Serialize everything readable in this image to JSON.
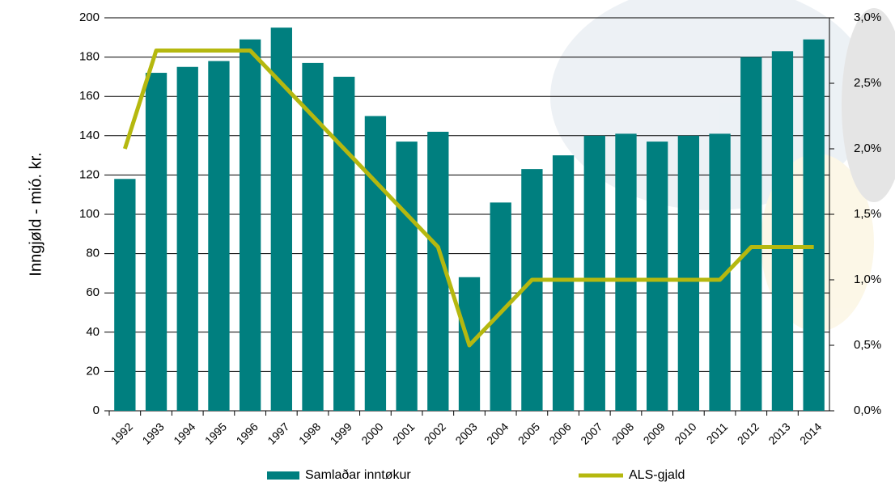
{
  "chart_data": {
    "type": "bar-line",
    "y_label": "Inngjøld - mió. kr.",
    "categories": [
      "1992",
      "1993",
      "1994",
      "1995",
      "1996",
      "1997",
      "1998",
      "1999",
      "2000",
      "2001",
      "2002",
      "2003",
      "2004",
      "2005",
      "2006",
      "2007",
      "2008",
      "2009",
      "2010",
      "2011",
      "2012",
      "2013",
      "2014"
    ],
    "series": [
      {
        "name": "Samlaðar inntøkur",
        "color": "#007f7f",
        "type": "bar",
        "values": [
          118,
          172,
          175,
          178,
          189,
          195,
          177,
          170,
          150,
          137,
          142,
          68,
          106,
          123,
          130,
          140,
          141,
          137,
          140,
          141,
          180,
          183,
          189
        ]
      },
      {
        "name": "ALS-gjald",
        "color": "#b5b80f",
        "type": "line",
        "axis": "y2",
        "values": [
          2.0,
          2.75,
          2.75,
          2.75,
          2.75,
          2.5,
          2.25,
          2.0,
          1.75,
          1.5,
          1.25,
          0.5,
          0.75,
          1.0,
          1.0,
          1.0,
          1.0,
          1.0,
          1.0,
          1.0,
          1.25,
          1.25,
          1.25
        ]
      }
    ],
    "ylim": [
      0,
      200
    ],
    "yticks": [
      0,
      20,
      40,
      60,
      80,
      100,
      120,
      140,
      160,
      180,
      200
    ],
    "y2lim": [
      0,
      3.0
    ],
    "y2ticks": [
      {
        "value": 0,
        "label": "0,0%"
      },
      {
        "value": 0.5,
        "label": "0,5%"
      },
      {
        "value": 1.0,
        "label": "1,0%"
      },
      {
        "value": 1.5,
        "label": "1,5%"
      },
      {
        "value": 2.0,
        "label": "2,0%"
      },
      {
        "value": 2.5,
        "label": "2,5%"
      },
      {
        "value": 3.0,
        "label": "3,0%"
      }
    ],
    "grid": true,
    "legend": "bottom"
  }
}
